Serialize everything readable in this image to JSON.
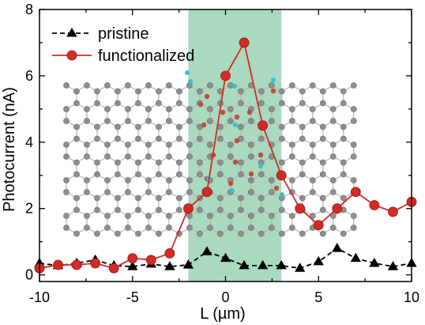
{
  "chart_data": {
    "type": "line",
    "xlabel": "L (µm)",
    "ylabel": "Photocurrent (nA)",
    "xlim": [
      -10,
      10
    ],
    "ylim": [
      -0.2,
      8
    ],
    "xticks": [
      -10,
      -5,
      0,
      5,
      10
    ],
    "yticks": [
      0,
      2,
      4,
      6,
      8
    ],
    "x_tick_labels": [
      "-10",
      "-5",
      "0",
      "5",
      "10"
    ],
    "y_tick_labels": [
      "0",
      "2",
      "4",
      "6",
      "8"
    ],
    "grid": false,
    "legend_position": "top-left",
    "highlight_region": {
      "x_start": -2,
      "x_end": 3,
      "color": "#a9d9bf"
    },
    "series": [
      {
        "name": "pristine",
        "color": "#000000",
        "marker": "triangle",
        "line_style": "dashed",
        "x": [
          -10,
          -9,
          -8,
          -7,
          -6,
          -5,
          -4,
          -3,
          -2,
          -1,
          0,
          1,
          2,
          3,
          4,
          5,
          6,
          7,
          8,
          9,
          10
        ],
        "y": [
          0.35,
          0.28,
          0.35,
          0.45,
          0.28,
          0.25,
          0.33,
          0.25,
          0.3,
          0.7,
          0.5,
          0.28,
          0.28,
          0.28,
          0.2,
          0.4,
          0.8,
          0.5,
          0.35,
          0.25,
          0.35
        ]
      },
      {
        "name": "functionalized",
        "color": "#d42a25",
        "marker": "circle",
        "line_style": "solid",
        "x": [
          -10,
          -9,
          -8,
          -7,
          -6,
          -5,
          -4,
          -3,
          -2,
          -1,
          0,
          1,
          2,
          3,
          4,
          5,
          6,
          7,
          8,
          9,
          10
        ],
        "y": [
          0.2,
          0.3,
          0.3,
          0.35,
          0.2,
          0.5,
          0.45,
          0.65,
          2.0,
          2.5,
          6.0,
          7.0,
          4.5,
          3.0,
          2.0,
          1.5,
          2.0,
          2.5,
          2.1,
          1.9,
          2.2
        ]
      }
    ]
  }
}
